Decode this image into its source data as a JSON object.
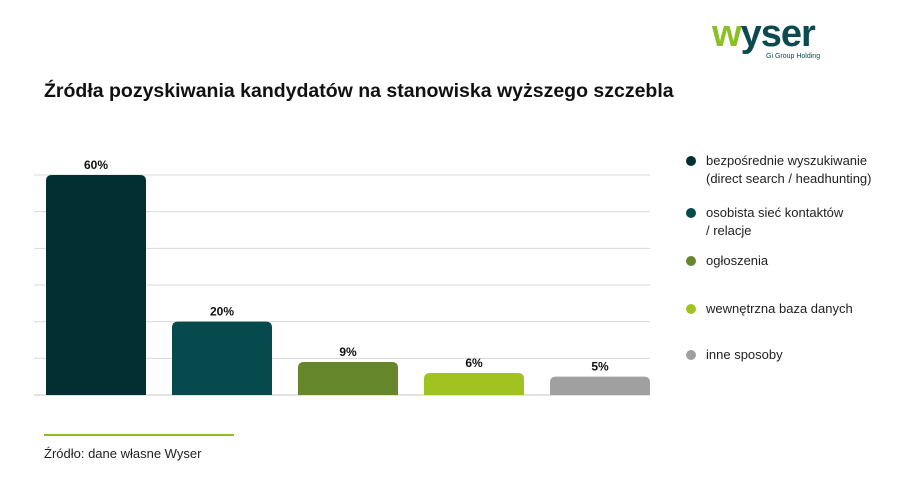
{
  "logo": {
    "word_accent": "w",
    "word_rest": "yser",
    "subtitle": "Gi Group Holding"
  },
  "colors": {
    "bar_colors": [
      "#023032",
      "#064a4e",
      "#66862b",
      "#a1c322",
      "#a0a0a0"
    ],
    "grid": "#d9d9d9",
    "source_line": "#8cbf26"
  },
  "chart_data": {
    "type": "bar",
    "title": "Źródła pozyskiwania kandydatów na stanowiska wyższego szczebla",
    "categories": [
      "bezpośrednie wyszukiwanie\n (direct search / headhunting)",
      "osobista sieć kontaktów\n / relacje",
      "ogłoszenia",
      "wewnętrzna baza danych",
      "inne sposoby"
    ],
    "values": [
      60,
      20,
      9,
      6,
      5
    ],
    "data_labels": [
      "60%",
      "20%",
      "9%",
      "6%",
      "5%"
    ],
    "ylim": [
      0,
      60
    ],
    "grid": true,
    "legend_position": "right"
  },
  "source": {
    "text": "Źródło: dane własne Wyser"
  }
}
